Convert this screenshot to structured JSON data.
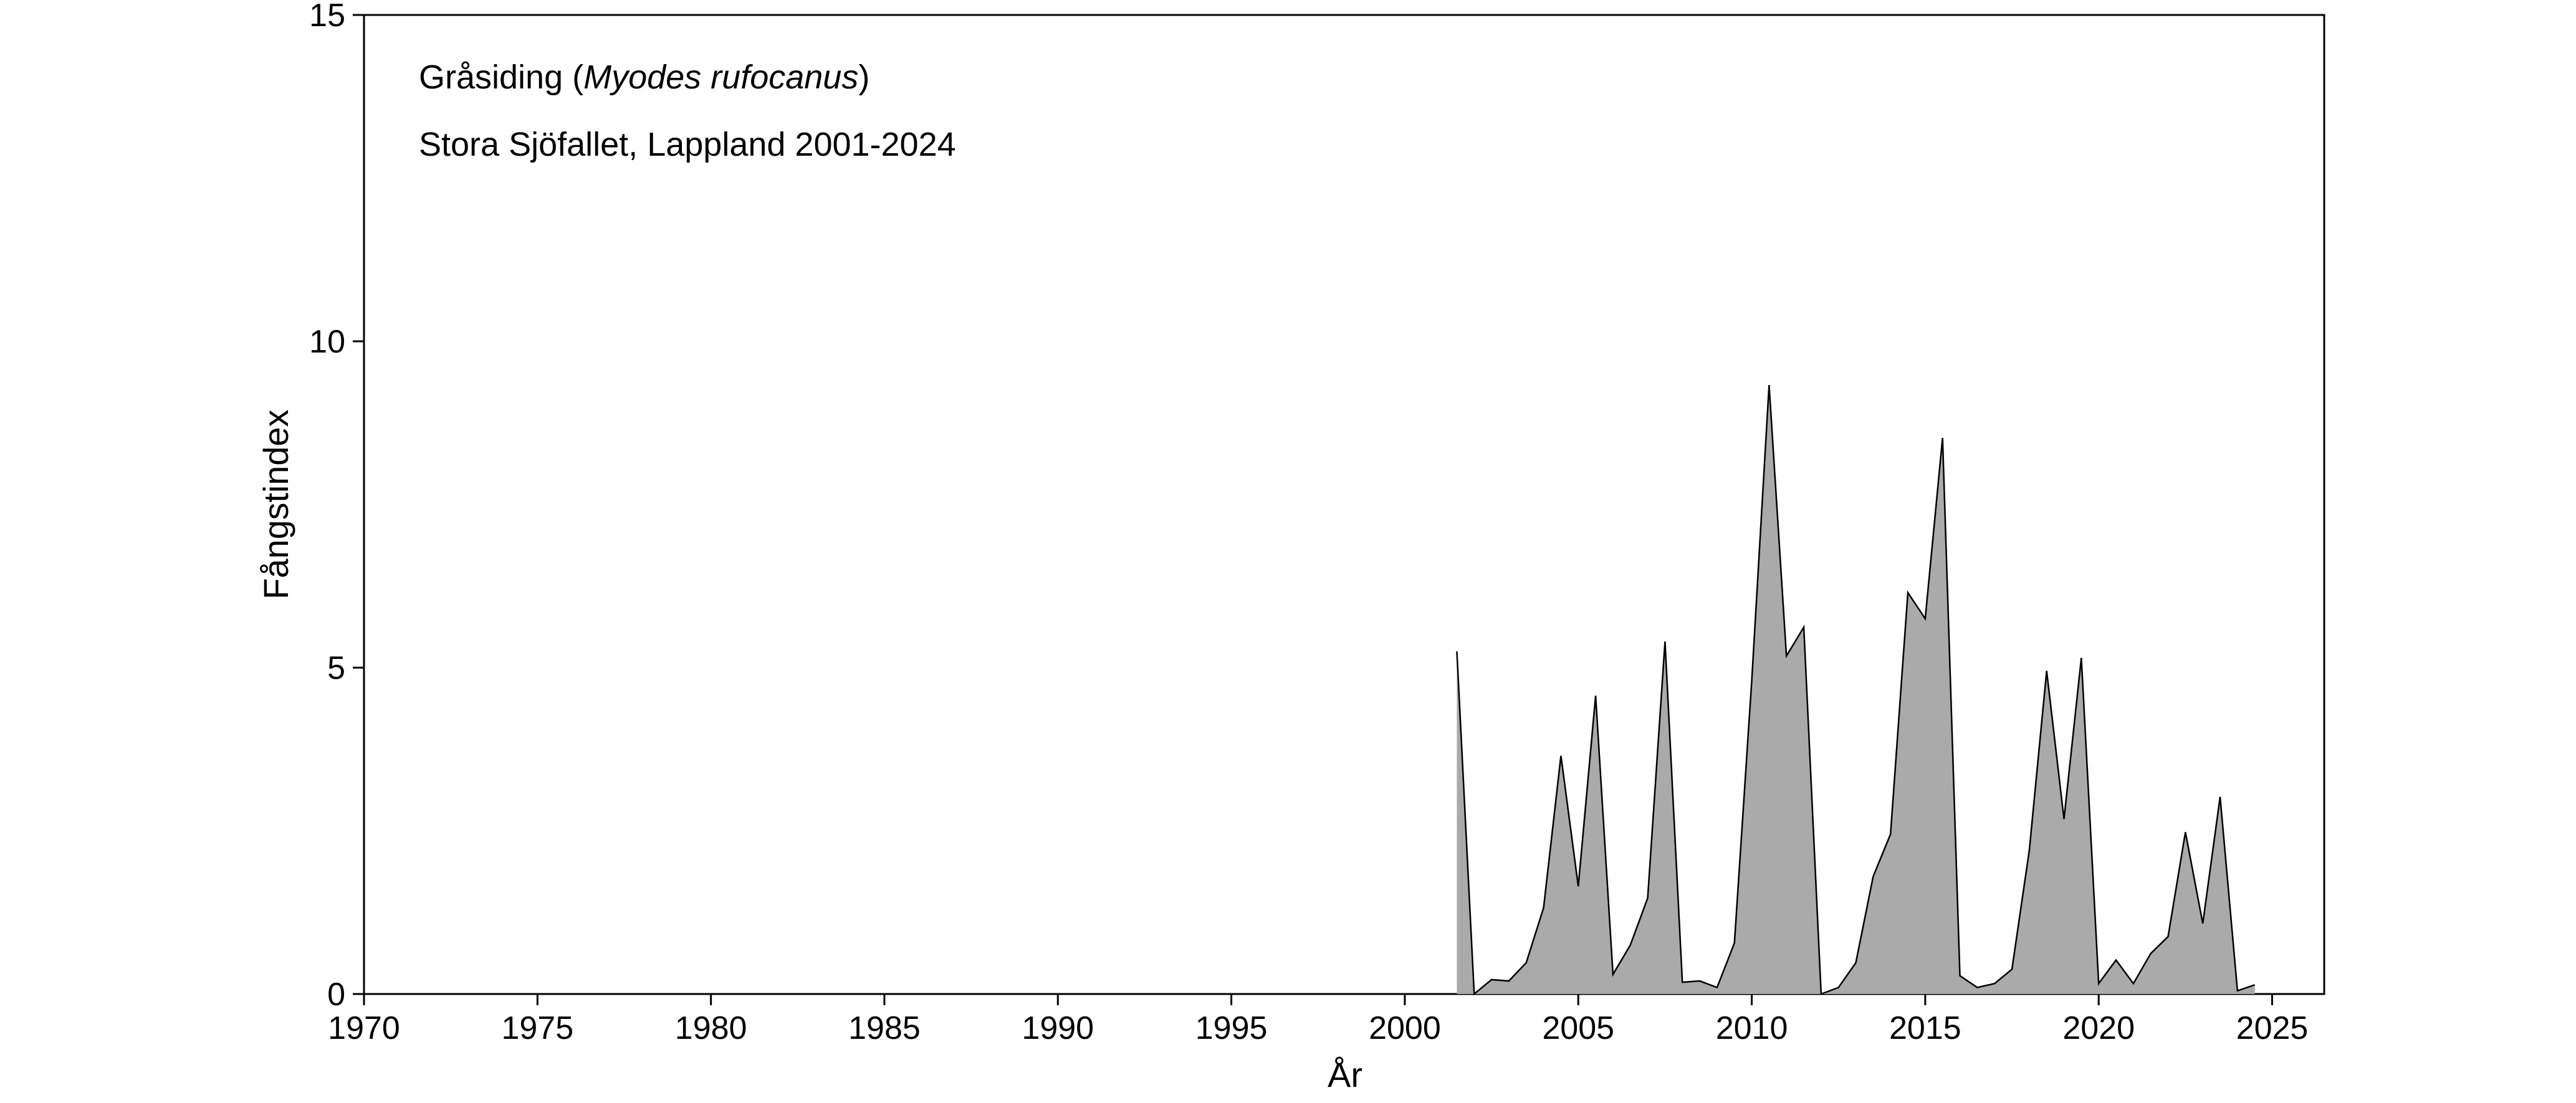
{
  "chart_data": {
    "type": "area",
    "annotation": {
      "name_prefix": "Gråsiding (",
      "latin_name": "Myodes rufocanus",
      "name_suffix": ")",
      "location": "Stora Sjöfallet, Lappland 2001-2024"
    },
    "xlabel": "År",
    "ylabel": "Fångstindex",
    "xlim": [
      1970,
      2026.5
    ],
    "ylim": [
      0,
      15
    ],
    "x_ticks": [
      1970,
      1975,
      1980,
      1985,
      1990,
      1995,
      2000,
      2005,
      2010,
      2015,
      2020,
      2025
    ],
    "y_ticks": [
      0,
      5,
      10,
      15
    ],
    "grid": false,
    "fill_color": "#aaaaaa",
    "line_color": "#000000",
    "series": [
      {
        "x": [
          2001.5,
          2002.0,
          2002.5,
          2003.0,
          2003.5,
          2004.0,
          2004.5,
          2005.0,
          2005.5,
          2006.0,
          2006.5,
          2007.0,
          2007.5,
          2008.0,
          2008.5,
          2009.0,
          2009.5,
          2010.0,
          2010.5,
          2011.0,
          2011.5,
          2012.0,
          2012.5,
          2013.0,
          2013.5,
          2014.0,
          2014.5,
          2015.0,
          2015.5,
          2016.0,
          2016.5,
          2017.0,
          2017.5,
          2018.0,
          2018.5,
          2019.0,
          2019.5,
          2020.0,
          2020.5,
          2021.0,
          2021.5,
          2022.0,
          2022.5,
          2023.0,
          2023.5,
          2024.0,
          2024.5
        ],
        "values": [
          5.25,
          0.0,
          0.22,
          0.2,
          0.48,
          1.32,
          3.65,
          1.65,
          4.57,
          0.3,
          0.75,
          1.47,
          5.4,
          0.18,
          0.2,
          0.1,
          0.78,
          4.8,
          9.33,
          5.18,
          5.62,
          0.0,
          0.1,
          0.48,
          1.8,
          2.45,
          6.15,
          5.75,
          8.52,
          0.28,
          0.1,
          0.16,
          0.38,
          2.2,
          4.95,
          2.68,
          5.15,
          0.16,
          0.52,
          0.16,
          0.62,
          0.88,
          2.48,
          1.08,
          3.02,
          0.05,
          0.14
        ]
      }
    ]
  }
}
